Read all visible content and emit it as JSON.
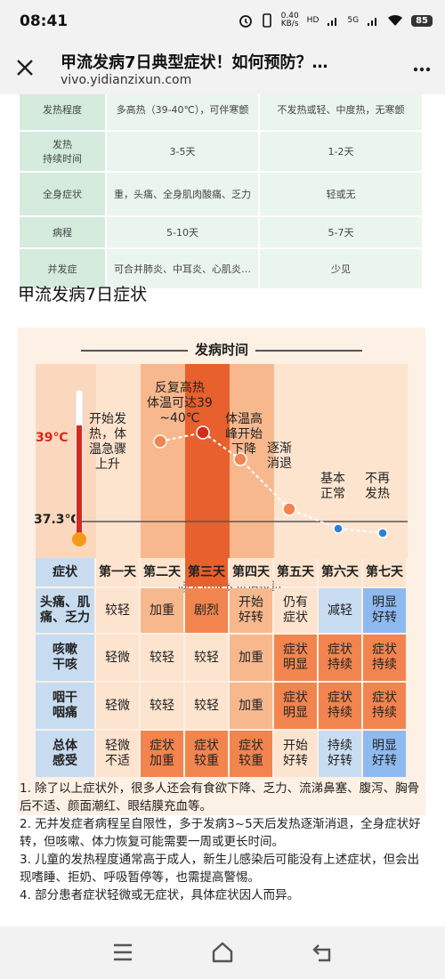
{
  "status_bar": {
    "time": "08:41",
    "net_speed_value": "0.40",
    "net_speed_unit": "KB/s",
    "signal_label_1": "HD",
    "signal_label_2": "5G",
    "signal_label_3": "HD",
    "battery": "85"
  },
  "browser": {
    "title": "甲流发病7日典型症状！如何预防？…",
    "url": "vivo.yidianzixun.com"
  },
  "compare_table": {
    "rows": [
      {
        "label": "发热程度",
        "flu": "多高热（39-40℃），可伴寒颤",
        "cold": "不发热或轻、中度热，无寒颤"
      },
      {
        "label": "发热\n持续时间",
        "flu": "3-5天",
        "cold": "1-2天"
      },
      {
        "label": "全身症状",
        "flu": "重，头痛、全身肌肉酸痛、乏力",
        "cold": "轻或无"
      },
      {
        "label": "病程",
        "flu": "5-10天",
        "cold": "5-7天"
      },
      {
        "label": "并发症",
        "flu": "可合并肺炎、中耳炎、心肌炎…",
        "cold": "少见"
      }
    ]
  },
  "section_title": "甲流发病7日症状",
  "infographic": {
    "axis_label": "发病时间",
    "temp_high": "39℃",
    "temp_normal": "37.3℃",
    "watermark": "@大川成长价值投资",
    "day_notes": [
      "开始发\n热，体\n温急骤\n上升",
      "反复高热\n体温可达39\n~40℃",
      "体温高\n峰开始\n下降",
      "逐渐\n消退",
      "基本\n正常",
      "不再\n发热"
    ],
    "header": [
      "症状",
      "第一天",
      "第二天",
      "第三天",
      "第四天",
      "第五天",
      "第六天",
      "第七天"
    ],
    "rows": [
      {
        "label": "头痛、肌\n痛、乏力",
        "cells": [
          "较轻",
          "加重",
          "剧烈",
          "开始\n好转",
          "仍有\n症状",
          "减轻",
          "明显\n好转"
        ]
      },
      {
        "label": "咳嗽\n干咳",
        "cells": [
          "轻微",
          "较轻",
          "较轻",
          "加重",
          "症状\n明显",
          "症状\n持续",
          "症状\n持续"
        ]
      },
      {
        "label": "咽干\n咽痛",
        "cells": [
          "轻微",
          "较轻",
          "较轻",
          "加重",
          "症状\n明显",
          "症状\n持续",
          "症状\n持续"
        ]
      },
      {
        "label": "总体\n感受",
        "cells": [
          "轻微\n不适",
          "症状\n加重",
          "症状\n较重",
          "症状\n较重",
          "开始\n好转",
          "持续\n好转",
          "明显\n好转"
        ]
      }
    ],
    "colors": {
      "light": "#fde4cf",
      "mid": "#f8b88e",
      "strong": "#f2854f",
      "peak": "#e8602e",
      "blue_light": "#c9ddf2",
      "blue": "#8fbaf0",
      "label_col": "#c8dcf0",
      "line_red": "#d42a1f"
    }
  },
  "notes": [
    "1. 除了以上症状外，很多人还会有食欲下降、乏力、流涕鼻塞、腹泻、胸骨后不适、颜面潮红、眼结膜充血等。",
    "2. 无并发症者病程呈自限性，多于发病3~5天后发热逐渐消退，全身症状好转，但咳嗽、体力恢复可能需要一周或更长时间。",
    "3. 儿童的发热程度通常高于成人，新生儿感染后可能没有上述症状，但会出现嗜睡、拒奶、呼吸暂停等，也需提高警惕。",
    "4. 部分患者症状轻微或无症状，具体症状因人而异。"
  ]
}
